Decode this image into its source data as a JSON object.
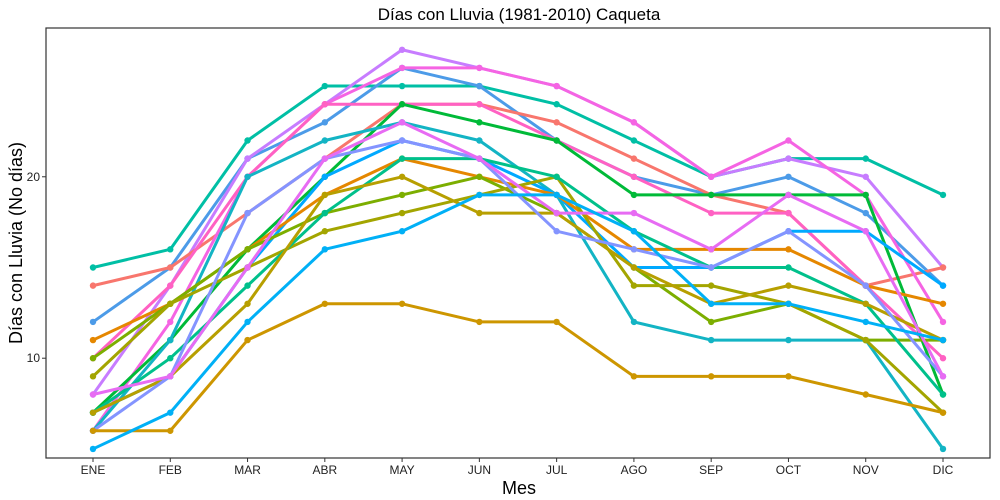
{
  "chart_data": {
    "type": "line",
    "title": "Días con Lluvia (1981-2010)  Caqueta",
    "xlabel": "Mes",
    "ylabel": "Días con Lluvia (No días)",
    "categories": [
      "ENE",
      "FEB",
      "MAR",
      "ABR",
      "MAY",
      "JUN",
      "JUL",
      "AGO",
      "SEP",
      "OCT",
      "NOV",
      "DIC"
    ],
    "ylim": [
      4.5,
      28.2
    ],
    "yticks": [
      10,
      20
    ],
    "grid": false,
    "legend": "none",
    "series": [
      {
        "color": "#00BFA5",
        "values": [
          15,
          16,
          22,
          25,
          25,
          25,
          24,
          22,
          20,
          21,
          21,
          19
        ]
      },
      {
        "color": "#4C9BE8",
        "values": [
          12,
          15,
          21,
          23,
          26,
          25,
          22,
          20,
          19,
          20,
          18,
          14
        ]
      },
      {
        "color": "#C77CFF",
        "values": [
          8,
          14,
          21,
          24,
          27,
          26,
          25,
          23,
          20,
          21,
          20,
          15
        ]
      },
      {
        "color": "#F8766D",
        "values": [
          14,
          15,
          18,
          21,
          24,
          24,
          23,
          21,
          19,
          18,
          14,
          15
        ]
      },
      {
        "color": "#F564E3",
        "values": [
          6,
          12,
          20,
          24,
          26,
          26,
          25,
          23,
          20,
          22,
          19,
          12
        ]
      },
      {
        "color": "#FF61C3",
        "values": [
          10,
          14,
          20,
          24,
          24,
          24,
          22,
          20,
          18,
          18,
          14,
          10
        ]
      },
      {
        "color": "#00BA38",
        "values": [
          7,
          11,
          16,
          20,
          24,
          23,
          22,
          19,
          19,
          19,
          19,
          8
        ]
      },
      {
        "color": "#13B4C4",
        "values": [
          6,
          11,
          20,
          22,
          23,
          22,
          19,
          12,
          11,
          11,
          11,
          5
        ]
      },
      {
        "color": "#00A9FF",
        "values": [
          7,
          9,
          15,
          20,
          22,
          21,
          19,
          15,
          15,
          17,
          17,
          14
        ]
      },
      {
        "color": "#E58700",
        "values": [
          11,
          13,
          16,
          19,
          21,
          20,
          19,
          16,
          16,
          16,
          14,
          13
        ]
      },
      {
        "color": "#7CAE00",
        "values": [
          10,
          13,
          16,
          18,
          19,
          20,
          18,
          15,
          12,
          13,
          11,
          11
        ]
      },
      {
        "color": "#A3A500",
        "values": [
          9,
          13,
          15,
          17,
          18,
          19,
          20,
          14,
          14,
          13,
          11,
          7
        ]
      },
      {
        "color": "#00C08B",
        "values": [
          7,
          10,
          14,
          18,
          21,
          21,
          20,
          17,
          15,
          15,
          13,
          8
        ]
      },
      {
        "color": "#B79F00",
        "values": [
          7,
          9,
          13,
          19,
          20,
          18,
          18,
          15,
          13,
          14,
          13,
          11
        ]
      },
      {
        "color": "#8494FF",
        "values": [
          6,
          9,
          18,
          21,
          22,
          21,
          17,
          16,
          15,
          17,
          14,
          9
        ]
      },
      {
        "color": "#E76BF3",
        "values": [
          8,
          9,
          15,
          21,
          23,
          21,
          18,
          18,
          16,
          19,
          17,
          9
        ]
      },
      {
        "color": "#CD9600",
        "values": [
          6,
          6,
          11,
          13,
          13,
          12,
          12,
          9,
          9,
          9,
          8,
          7
        ]
      },
      {
        "color": "#00B0F6",
        "values": [
          5,
          7,
          12,
          16,
          17,
          19,
          19,
          17,
          13,
          13,
          12,
          11
        ]
      }
    ]
  }
}
